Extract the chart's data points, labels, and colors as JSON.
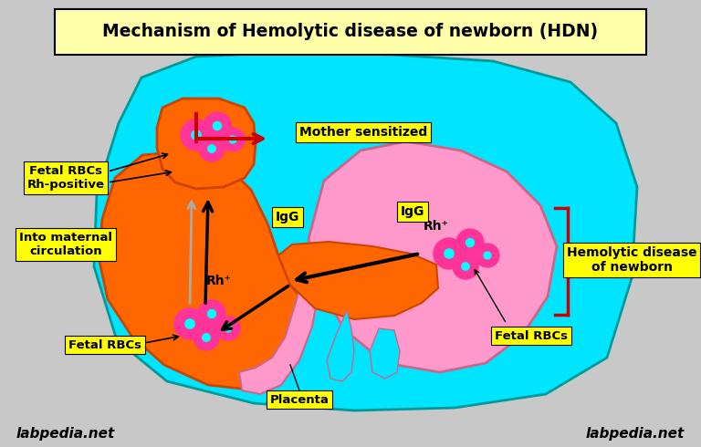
{
  "title": "Mechanism of Hemolytic disease of newborn (HDN)",
  "bg_color": "#c8c8c8",
  "title_box_color": "#ffffaa",
  "label_box_color": "#ffff00",
  "cyan_blob_color": "#00e5ff",
  "orange_blob_color": "#ff6600",
  "pink_blob_color": "#ff99cc",
  "rbc_color": "#ff3399",
  "rbc_dot_color": "#00ffff",
  "arrow_color": "#000000",
  "red_arrow_color": "#cc0000",
  "bracket_color": "#cc0000",
  "watermark": "labpedia.net",
  "labels": {
    "fetal_rbc_rh": "Fetal RBCs\nRh-positive",
    "into_maternal": "Into maternal\ncirculation",
    "mother_sensitized": "Mother sensitized",
    "igg_left": "IgG",
    "igg_right": "IgG",
    "hemolytic": "Hemolytic disease\nof newborn",
    "fetal_rbcs_right": "Fetal RBCs",
    "fetal_rbcs_bottom": "Fetal RBCs",
    "placenta": "Placenta",
    "rh_top": "Rh⁺",
    "rh_bottom": "Rh⁺"
  }
}
